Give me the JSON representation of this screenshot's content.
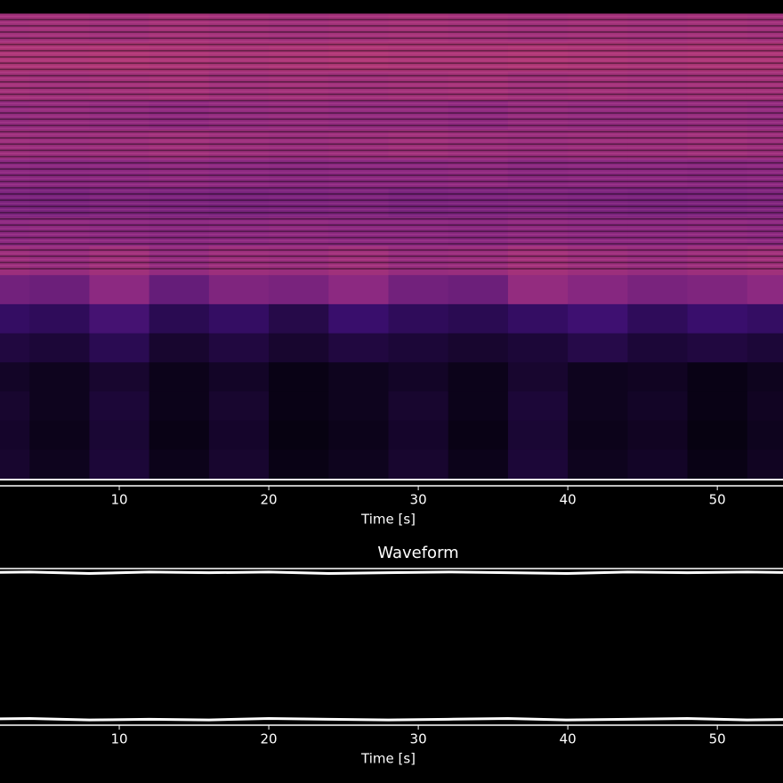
{
  "chart_data": [
    {
      "type": "heatmap",
      "xlabel": "Time [s]",
      "xlim": [
        0,
        56
      ],
      "xticks": [
        10,
        20,
        30,
        40,
        50
      ],
      "x_edges": [
        0,
        4,
        8,
        12,
        16,
        20,
        24,
        28,
        32,
        36,
        40,
        44,
        48,
        52,
        56
      ],
      "colormap": "magma",
      "zlim": [
        0,
        1
      ],
      "z": [
        [
          0.56,
          0.57,
          0.56,
          0.58,
          0.57,
          0.56,
          0.57,
          0.58,
          0.57,
          0.56,
          0.57,
          0.56,
          0.57,
          0.56
        ],
        [
          0.6,
          0.6,
          0.61,
          0.6,
          0.59,
          0.6,
          0.61,
          0.6,
          0.6,
          0.61,
          0.6,
          0.59,
          0.6,
          0.6
        ],
        [
          0.57,
          0.56,
          0.57,
          0.58,
          0.56,
          0.57,
          0.56,
          0.57,
          0.58,
          0.56,
          0.57,
          0.56,
          0.57,
          0.57
        ],
        [
          0.52,
          0.53,
          0.52,
          0.51,
          0.52,
          0.53,
          0.52,
          0.52,
          0.51,
          0.53,
          0.52,
          0.52,
          0.53,
          0.52
        ],
        [
          0.55,
          0.54,
          0.55,
          0.56,
          0.55,
          0.54,
          0.55,
          0.56,
          0.55,
          0.54,
          0.55,
          0.55,
          0.56,
          0.55
        ],
        [
          0.5,
          0.49,
          0.5,
          0.51,
          0.5,
          0.49,
          0.5,
          0.5,
          0.51,
          0.49,
          0.5,
          0.5,
          0.49,
          0.5
        ],
        [
          0.45,
          0.44,
          0.46,
          0.45,
          0.44,
          0.45,
          0.46,
          0.44,
          0.45,
          0.46,
          0.45,
          0.44,
          0.45,
          0.46
        ],
        [
          0.5,
          0.51,
          0.5,
          0.49,
          0.5,
          0.51,
          0.5,
          0.5,
          0.49,
          0.51,
          0.5,
          0.5,
          0.51,
          0.5
        ],
        [
          0.55,
          0.53,
          0.56,
          0.52,
          0.55,
          0.54,
          0.56,
          0.53,
          0.54,
          0.57,
          0.55,
          0.53,
          0.55,
          0.56
        ],
        [
          0.42,
          0.4,
          0.5,
          0.38,
          0.46,
          0.44,
          0.5,
          0.42,
          0.4,
          0.52,
          0.48,
          0.44,
          0.46,
          0.5
        ],
        [
          0.22,
          0.2,
          0.28,
          0.18,
          0.22,
          0.16,
          0.24,
          0.2,
          0.18,
          0.22,
          0.26,
          0.2,
          0.24,
          0.22
        ],
        [
          0.14,
          0.12,
          0.18,
          0.1,
          0.14,
          0.1,
          0.14,
          0.12,
          0.1,
          0.12,
          0.16,
          0.12,
          0.14,
          0.12
        ],
        [
          0.08,
          0.06,
          0.1,
          0.05,
          0.08,
          0.04,
          0.06,
          0.08,
          0.05,
          0.1,
          0.06,
          0.07,
          0.04,
          0.06
        ],
        [
          0.1,
          0.06,
          0.12,
          0.05,
          0.1,
          0.04,
          0.06,
          0.1,
          0.05,
          0.12,
          0.06,
          0.08,
          0.04,
          0.07
        ],
        [
          0.09,
          0.05,
          0.11,
          0.04,
          0.09,
          0.03,
          0.05,
          0.09,
          0.04,
          0.11,
          0.05,
          0.07,
          0.03,
          0.06
        ],
        [
          0.1,
          0.06,
          0.12,
          0.05,
          0.1,
          0.04,
          0.06,
          0.1,
          0.05,
          0.12,
          0.06,
          0.08,
          0.04,
          0.07
        ]
      ]
    },
    {
      "type": "line",
      "title": "Waveform",
      "xlabel": "Time [s]",
      "xlim": [
        0,
        56
      ],
      "xticks": [
        10,
        20,
        30,
        40,
        50
      ],
      "ylim": [
        -1,
        1
      ],
      "x": [
        0,
        4,
        8,
        12,
        16,
        20,
        24,
        28,
        32,
        36,
        40,
        44,
        48,
        52,
        56
      ],
      "series": [
        {
          "color": "#ffffff",
          "values": [
            0.98,
            0.99,
            0.97,
            0.99,
            0.98,
            0.99,
            0.97,
            0.98,
            0.99,
            0.98,
            0.97,
            0.99,
            0.98,
            0.99,
            0.98
          ]
        },
        {
          "color": "#ffffff",
          "values": [
            -0.98,
            -0.97,
            -0.99,
            -0.98,
            -0.99,
            -0.97,
            -0.98,
            -0.99,
            -0.98,
            -0.97,
            -0.99,
            -0.98,
            -0.97,
            -0.99,
            -0.98
          ]
        }
      ]
    }
  ]
}
